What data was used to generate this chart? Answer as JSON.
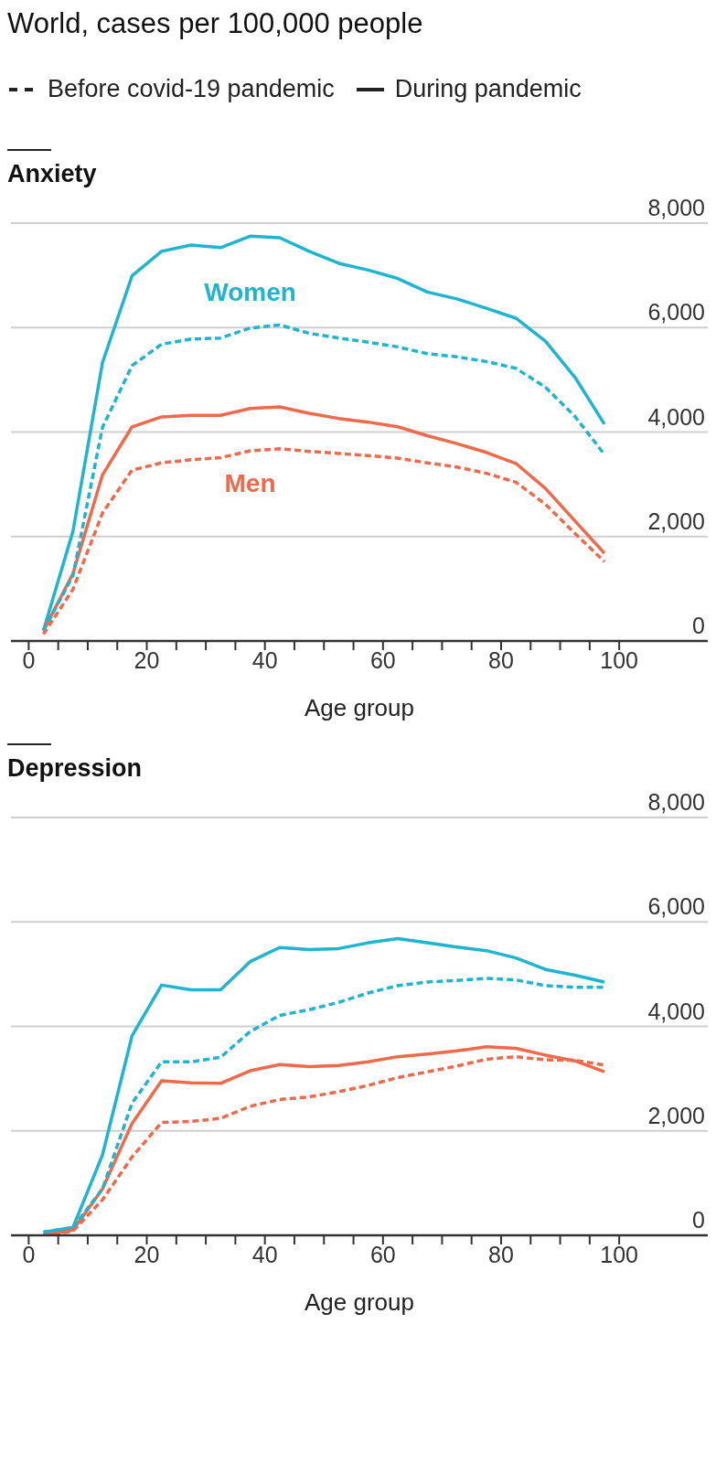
{
  "chart_data": [
    {
      "type": "line",
      "title": "World, cases per 100,000 people",
      "subtitle": "Anxiety",
      "xlabel": "Age group",
      "annotations": [
        "Before covid-19 pandemic",
        "During pandemic"
      ],
      "x": [
        2.5,
        7.5,
        12.5,
        17.5,
        22.5,
        27.5,
        32.5,
        37.5,
        42.5,
        47.5,
        52.5,
        57.5,
        62.5,
        67.5,
        72.5,
        77.5,
        82.5,
        87.5,
        92.5,
        97.5
      ],
      "series": [
        {
          "name": "Women",
          "color": "#1fb4cf",
          "line_style": "dashed",
          "values": [
            200,
            1250,
            4090,
            5270,
            5680,
            5780,
            5800,
            5990,
            6050,
            5890,
            5800,
            5720,
            5630,
            5500,
            5440,
            5350,
            5220,
            4860,
            4300,
            3570
          ]
        },
        {
          "color": "#1fb4cf",
          "line_style": "solid",
          "values": [
            200,
            2100,
            5330,
            6990,
            7460,
            7580,
            7530,
            7750,
            7720,
            7460,
            7230,
            7100,
            6940,
            6680,
            6550,
            6370,
            6180,
            5740,
            5050,
            4150
          ]
        },
        {
          "name": "Men",
          "color": "#ee6a4d",
          "line_style": "dashed",
          "values": [
            130,
            990,
            2450,
            3270,
            3410,
            3470,
            3510,
            3640,
            3680,
            3630,
            3590,
            3550,
            3500,
            3410,
            3330,
            3210,
            3040,
            2620,
            2060,
            1520
          ]
        },
        {
          "color": "#ee6a4d",
          "line_style": "solid",
          "values": [
            200,
            1290,
            3180,
            4100,
            4290,
            4320,
            4320,
            4450,
            4480,
            4360,
            4260,
            4190,
            4100,
            3930,
            3780,
            3610,
            3400,
            2920,
            2300,
            1680
          ]
        }
      ],
      "xlim": [
        -3,
        115
      ],
      "xticks": [
        0,
        {
          "value": 5,
          "label": null
        },
        {
          "value": 10,
          "label": null
        },
        {
          "value": 15,
          "label": null
        },
        20,
        {
          "value": 25,
          "label": null
        },
        {
          "value": 30,
          "label": null
        },
        {
          "value": 35,
          "label": null
        },
        40,
        {
          "value": 45,
          "label": null
        },
        {
          "value": 50,
          "label": null
        },
        {
          "value": 55,
          "label": null
        },
        60,
        {
          "value": 65,
          "label": null
        },
        {
          "value": 70,
          "label": null
        },
        {
          "value": 75,
          "label": null
        },
        80,
        {
          "value": 85,
          "label": null
        },
        {
          "value": 90,
          "label": null
        },
        {
          "value": 95,
          "label": null
        },
        100
      ],
      "ylim": [
        0,
        8000
      ],
      "yticks": [
        0,
        {
          "value": 2000,
          "label": "2,000"
        },
        {
          "value": 4000,
          "label": "4,000"
        },
        {
          "value": 6000,
          "label": "6,000"
        },
        {
          "value": 8000,
          "label": "8,000"
        }
      ],
      "grid": "y",
      "marker": "none"
    },
    {
      "type": "line",
      "subtitle": "Depression",
      "xlabel": "Age group",
      "x": [
        2.5,
        7.5,
        12.5,
        17.5,
        22.5,
        27.5,
        32.5,
        37.5,
        42.5,
        47.5,
        52.5,
        57.5,
        62.5,
        67.5,
        72.5,
        77.5,
        82.5,
        87.5,
        92.5,
        97.5
      ],
      "series": [
        {
          "color": "#1fb4cf",
          "line_style": "dashed",
          "values": [
            60,
            150,
            890,
            2530,
            3320,
            3320,
            3410,
            3900,
            4210,
            4320,
            4460,
            4640,
            4780,
            4850,
            4880,
            4920,
            4890,
            4780,
            4750,
            4750
          ]
        },
        {
          "color": "#1fb4cf",
          "line_style": "solid",
          "values": [
            60,
            150,
            1540,
            3820,
            4790,
            4700,
            4700,
            5240,
            5510,
            5470,
            5490,
            5600,
            5680,
            5600,
            5520,
            5450,
            5310,
            5090,
            4980,
            4850
          ]
        },
        {
          "color": "#ee6a4d",
          "line_style": "dashed",
          "values": [
            0,
            80,
            680,
            1500,
            2160,
            2180,
            2240,
            2470,
            2600,
            2650,
            2750,
            2870,
            3020,
            3130,
            3240,
            3370,
            3420,
            3360,
            3350,
            3260
          ]
        },
        {
          "color": "#ee6a4d",
          "line_style": "solid",
          "values": [
            0,
            100,
            890,
            2140,
            2960,
            2920,
            2910,
            3150,
            3270,
            3230,
            3250,
            3320,
            3420,
            3470,
            3530,
            3610,
            3580,
            3450,
            3340,
            3130
          ]
        }
      ],
      "xlim": [
        -3,
        115
      ],
      "xticks": [
        0,
        {
          "value": 5,
          "label": null
        },
        {
          "value": 10,
          "label": null
        },
        {
          "value": 15,
          "label": null
        },
        20,
        {
          "value": 25,
          "label": null
        },
        {
          "value": 30,
          "label": null
        },
        {
          "value": 35,
          "label": null
        },
        40,
        {
          "value": 45,
          "label": null
        },
        {
          "value": 50,
          "label": null
        },
        {
          "value": 55,
          "label": null
        },
        60,
        {
          "value": 65,
          "label": null
        },
        {
          "value": 70,
          "label": null
        },
        {
          "value": 75,
          "label": null
        },
        80,
        {
          "value": 85,
          "label": null
        },
        {
          "value": 90,
          "label": null
        },
        {
          "value": 95,
          "label": null
        },
        100
      ],
      "ylim": [
        0,
        8000
      ],
      "yticks": [
        0,
        {
          "value": 2000,
          "label": "2,000"
        },
        {
          "value": 4000,
          "label": "4,000"
        },
        {
          "value": 6000,
          "label": "6,000"
        },
        {
          "value": 8000,
          "label": "8,000"
        }
      ],
      "grid": "y",
      "marker": "none"
    }
  ]
}
